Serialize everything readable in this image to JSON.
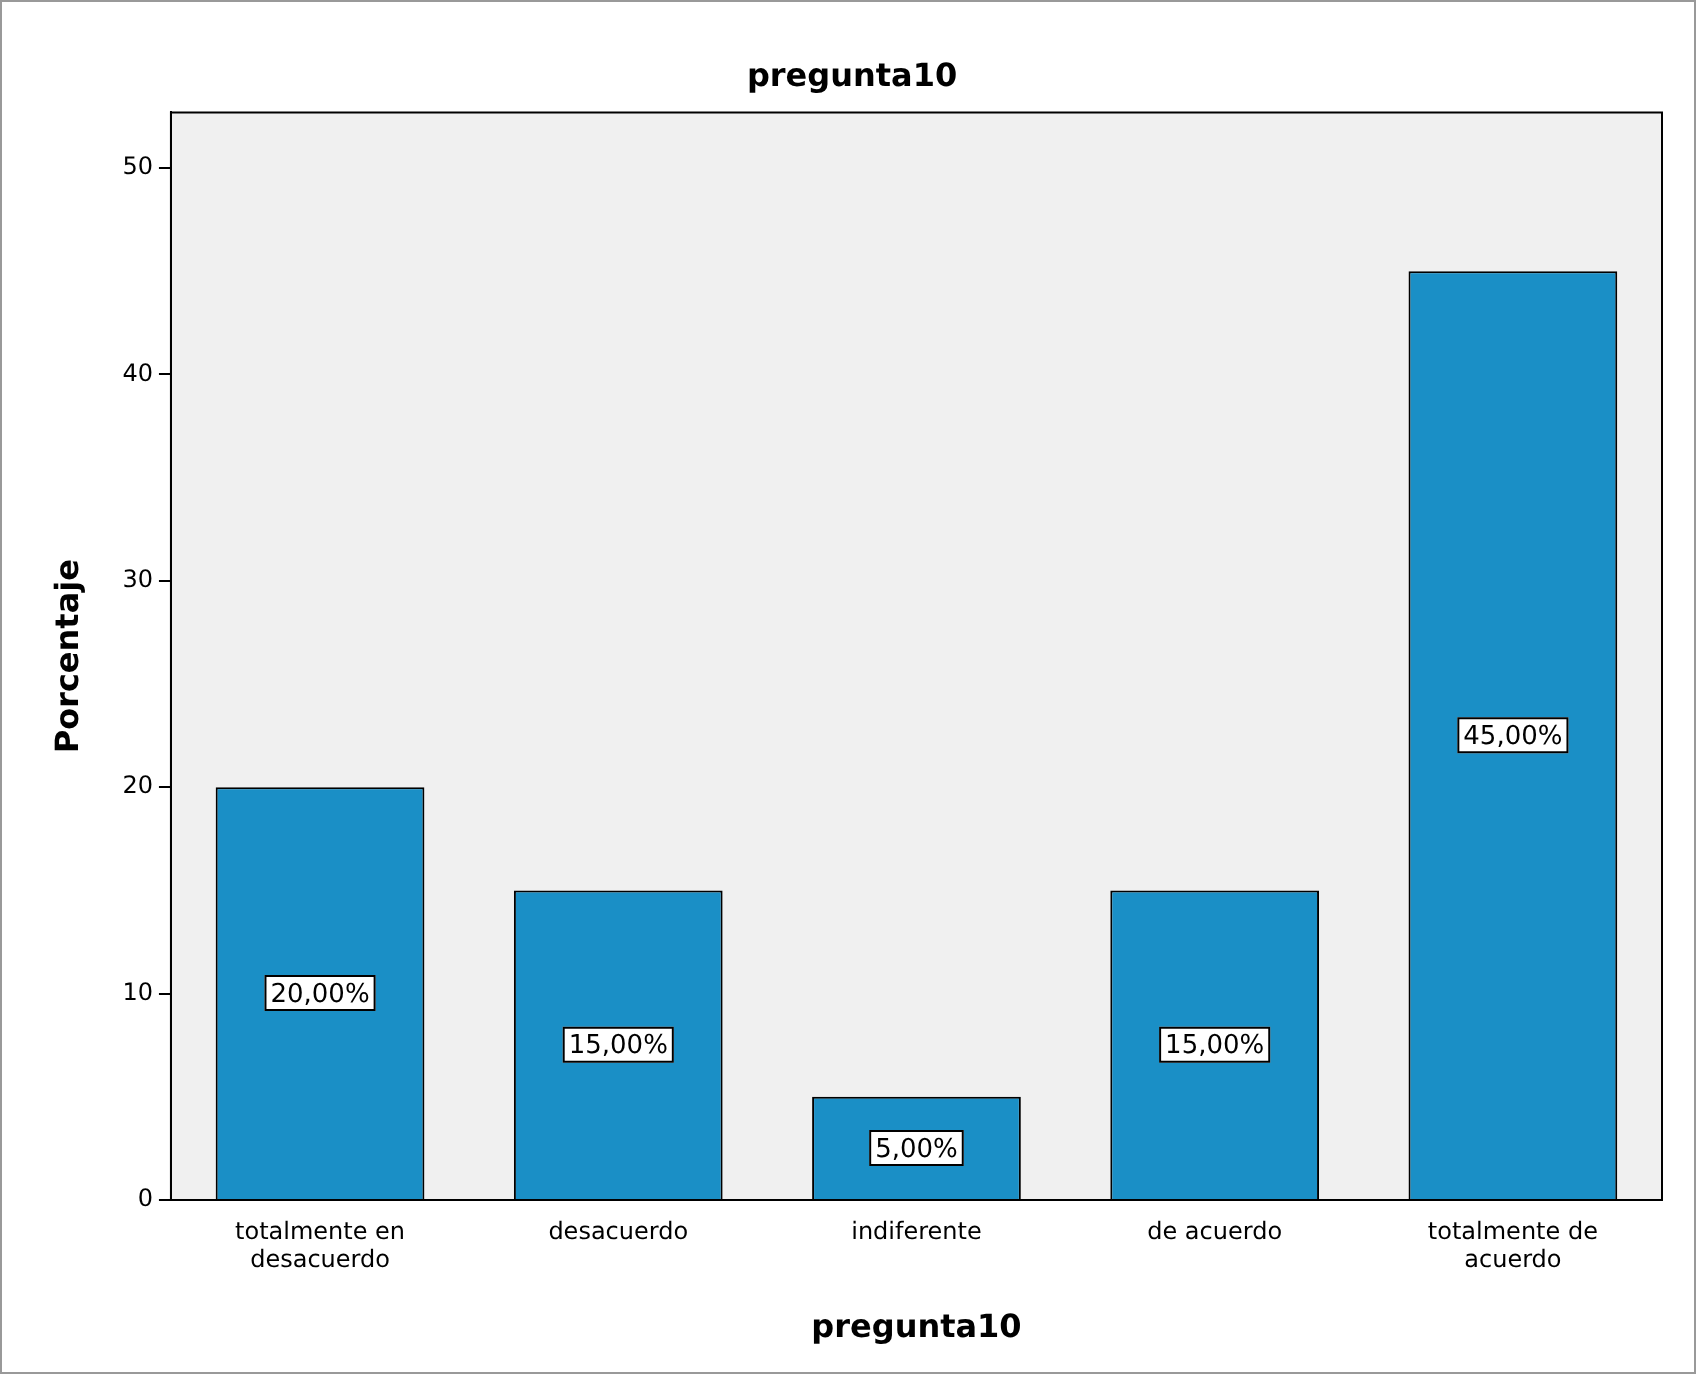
{
  "chart_data": {
    "type": "bar",
    "title": "pregunta10",
    "xlabel": "pregunta10",
    "ylabel": "Porcentaje",
    "categories": [
      "totalmente en desacuerdo",
      "desacuerdo",
      "indiferente",
      "de acuerdo",
      "totalmente de acuerdo"
    ],
    "values": [
      20,
      15,
      5,
      15,
      45
    ],
    "value_labels": [
      "20,00%",
      "15,00%",
      "5,00%",
      "15,00%",
      "45,00%"
    ],
    "color": "#1a8fc6",
    "ylim": [
      0,
      52.7
    ],
    "yticks": [
      0,
      10,
      20,
      30,
      40,
      50
    ],
    "grid": false,
    "legend": false
  }
}
